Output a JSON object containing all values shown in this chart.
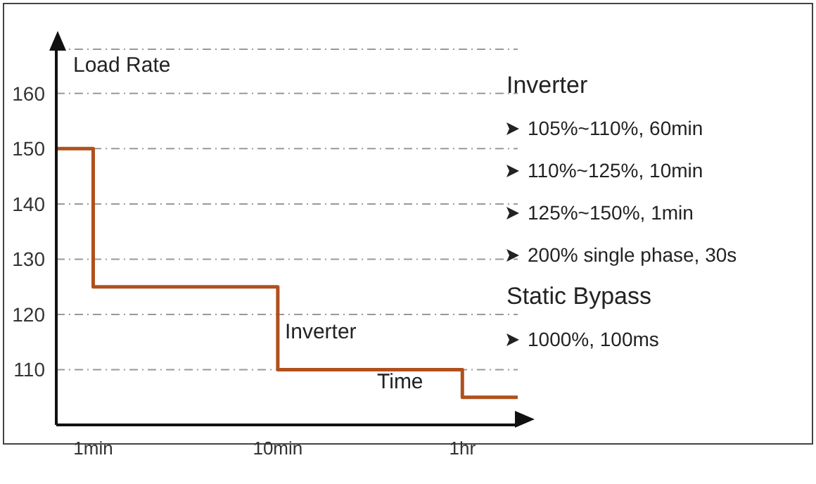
{
  "chart_data": {
    "type": "step",
    "ylabel": "Load Rate",
    "xlabel": "Time",
    "categories": [
      null,
      null,
      "1min",
      null,
      null,
      null,
      null,
      null,
      null,
      null,
      null,
      null,
      "10min",
      null,
      null,
      null,
      null,
      null,
      null,
      null,
      null,
      null,
      "1hr",
      null,
      null,
      null
    ],
    "series": [
      {
        "color": "#b0501e",
        "values": [
          150,
          150,
          125,
          125,
          125,
          125,
          125,
          125,
          125,
          125,
          125,
          125,
          110,
          110,
          110,
          110,
          110,
          110,
          110,
          110,
          110,
          110,
          105,
          105,
          105,
          105
        ]
      }
    ],
    "ylim": [
      100,
      168
    ],
    "yticks": [
      110,
      120,
      130,
      140,
      150,
      160
    ],
    "grid": "y",
    "marker": "none",
    "line_style": "solid",
    "legend": false,
    "annotations": [
      {
        "text": "Inverter",
        "x": "10min",
        "y": 117
      },
      "Inverter",
      "105%~110%, 60min",
      "110%~125%, 10min",
      "125%~150%, 1min",
      "200% single phase, 30s",
      "Static Bypass",
      "1000%, 100ms"
    ]
  }
}
